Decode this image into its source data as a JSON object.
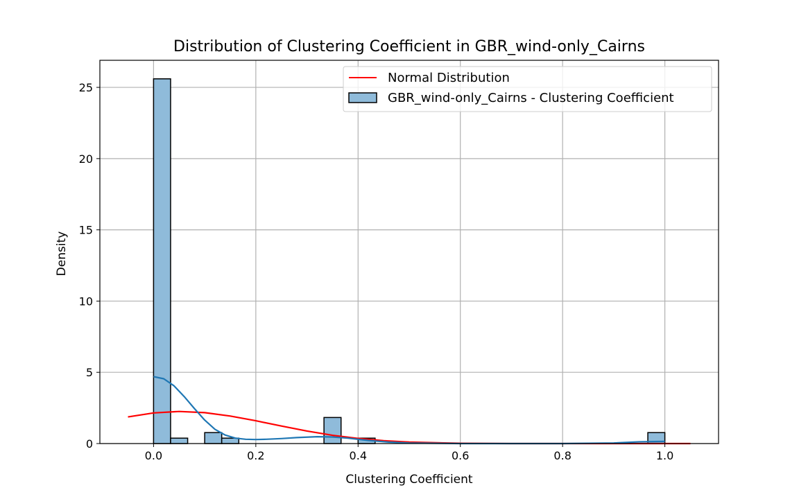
{
  "chart_data": {
    "type": "bar",
    "title": "Distribution of Clustering Coefficient in GBR_wind-only_Cairns",
    "xlabel": "Clustering Coefficient",
    "ylabel": "Density",
    "xlim": [
      -0.105,
      1.105
    ],
    "ylim": [
      0,
      26.9
    ],
    "x_ticks": [
      0.0,
      0.2,
      0.4,
      0.6,
      0.8,
      1.0
    ],
    "x_tick_labels": [
      "0.0",
      "0.2",
      "0.4",
      "0.6",
      "0.8",
      "1.0"
    ],
    "y_ticks": [
      0,
      5,
      10,
      15,
      20,
      25
    ],
    "y_tick_labels": [
      "0",
      "5",
      "10",
      "15",
      "20",
      "25"
    ],
    "grid": true,
    "legend_position": "upper right",
    "colors": {
      "bar_fill": "#8fbbda",
      "bar_edge": "#000000",
      "kde_line": "#1f77b4",
      "normal_line": "#ff0000",
      "grid": "#b0b0b0"
    },
    "histogram": {
      "name": "GBR_wind-only_Cairns - Clustering Coefficient",
      "bins": [
        {
          "x0": 0.0,
          "x1": 0.0333,
          "density": 25.6
        },
        {
          "x0": 0.0333,
          "x1": 0.0667,
          "density": 0.38
        },
        {
          "x0": 0.1,
          "x1": 0.1333,
          "density": 0.77
        },
        {
          "x0": 0.1333,
          "x1": 0.1667,
          "density": 0.38
        },
        {
          "x0": 0.3333,
          "x1": 0.3667,
          "density": 1.83
        },
        {
          "x0": 0.4,
          "x1": 0.4333,
          "density": 0.38
        },
        {
          "x0": 0.9667,
          "x1": 1.0,
          "density": 0.77
        }
      ]
    },
    "series": [
      {
        "name": "Normal Distribution",
        "type": "line",
        "x": [
          -0.05,
          0.0,
          0.05,
          0.1,
          0.15,
          0.2,
          0.25,
          0.3,
          0.35,
          0.4,
          0.45,
          0.5,
          0.6,
          0.7,
          0.8,
          0.9,
          1.0,
          1.05
        ],
        "y": [
          1.87,
          2.15,
          2.25,
          2.17,
          1.93,
          1.6,
          1.23,
          0.88,
          0.58,
          0.36,
          0.2,
          0.1,
          0.02,
          0.0,
          0.0,
          0.0,
          0.0,
          0.0
        ]
      },
      {
        "name": "",
        "type": "line",
        "x": [
          0.0,
          0.02,
          0.04,
          0.06,
          0.08,
          0.1,
          0.12,
          0.14,
          0.16,
          0.18,
          0.2,
          0.22,
          0.25,
          0.28,
          0.32,
          0.35,
          0.38,
          0.42,
          0.46,
          0.5,
          0.6,
          0.7,
          0.8,
          0.9,
          0.95,
          1.0
        ],
        "y": [
          4.7,
          4.55,
          4.05,
          3.3,
          2.45,
          1.65,
          1.0,
          0.6,
          0.38,
          0.3,
          0.28,
          0.3,
          0.35,
          0.42,
          0.48,
          0.46,
          0.38,
          0.22,
          0.1,
          0.04,
          0.0,
          0.0,
          0.0,
          0.04,
          0.12,
          0.15
        ]
      }
    ]
  }
}
